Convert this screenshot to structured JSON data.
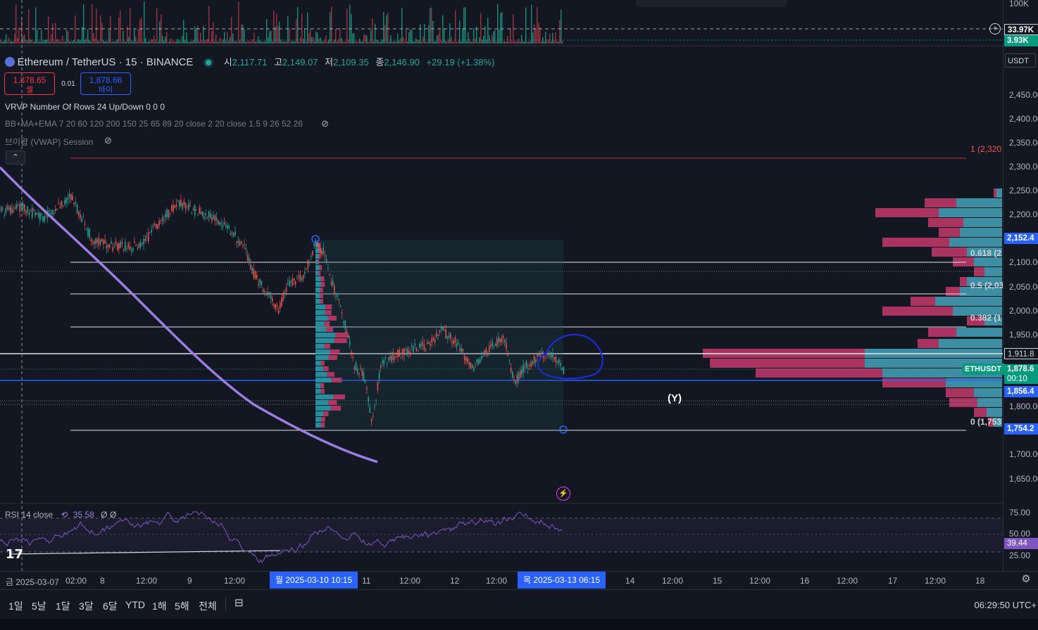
{
  "header": {
    "symbol": "Ethereum / TetherUS · 15 · BINANCE",
    "open_label": "시",
    "open_value": "2,117.71",
    "high_label": "고",
    "high_value": "2,149.07",
    "low_label": "저",
    "low_value": "2,109.35",
    "close_label": "종",
    "close_value": "2,146.90",
    "change": "+29.19 (+1.38%)"
  },
  "trade": {
    "sell_price": "1,878.65",
    "sell_label": "셀",
    "spread": "0.01",
    "buy_price": "1,878.66",
    "buy_label": "바이"
  },
  "indicators": {
    "vrvp": "VRVP Number Of Rows 24 Up/Down  0  0  0",
    "bbmaema": "BB+MA+EMA 7 20 60 120 200 150 25 65 89 20 close 2 20 close 1.5 9 26 52 26",
    "vwap": "브이왑 (VWAP) Session",
    "rsi_name": "RSI 14 close",
    "rsi_value": "35.58",
    "rsi_extra": "Ø  Ø"
  },
  "volume_axis": {
    "top": "100K",
    "marker": "33.97K",
    "current": "3.93K"
  },
  "price_axis": {
    "currency": "USDT",
    "ticks": [
      "2,450.00",
      "2,400.00",
      "2,350.00",
      "2,300.00",
      "2,250.00",
      "2,200.00",
      "2,100.00",
      "2,050.00",
      "2,000.00",
      "1,950.00",
      "1,800.00",
      "1,700.00",
      "1,650.00"
    ],
    "badge_high": "2,152.4",
    "badge_1911": "1,911.8",
    "badge_current": "1,878.6",
    "countdown": "00:10",
    "badge_1856": "1,856.4",
    "badge_low": "1,754.2",
    "symbol_tag": "ETHUSDT"
  },
  "fib_labels": {
    "f1": "1 (2,320",
    "f0618": "0.618 (2",
    "f05": "0.5 (2,03",
    "f0382": "0.382 (1",
    "f0": "0 (1,753"
  },
  "wave_label": "(Y)",
  "rsi_axis": {
    "ticks": [
      "75.00",
      "50.00",
      "25.00"
    ],
    "current": "39.44"
  },
  "time_axis": {
    "ticks": [
      "금 2025-03-07",
      "02:00",
      "8",
      "12:00",
      "9",
      "12:00",
      "11",
      "12:00",
      "12",
      "12:00",
      "14",
      "12:00",
      "15",
      "12:00",
      "16",
      "12:00",
      "17",
      "12:00",
      "18"
    ],
    "badge_start": "월 2025-03-10  10:15",
    "badge_end": "목 2025-03-13  06:15"
  },
  "ranges": [
    "1일",
    "5날",
    "1달",
    "3달",
    "6달",
    "YTD",
    "1해",
    "5해",
    "전체"
  ],
  "clock": "06:29:50 UTC+",
  "colors": {
    "bg": "#131722",
    "up": "#26a69a",
    "down": "#ef5350",
    "accent": "#2962ff",
    "vwap": "#9c7ee0",
    "vp_up": "#2a9fae",
    "vp_down": "#c43a6a"
  },
  "icons": [
    "settings-icon",
    "compare-icon",
    "alert-icon",
    "add-icon",
    "hide-icon"
  ]
}
